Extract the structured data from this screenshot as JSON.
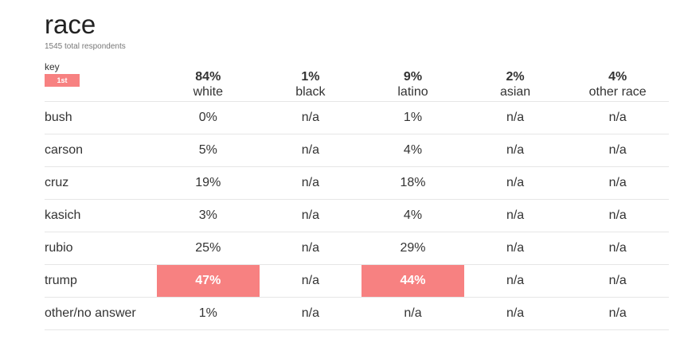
{
  "title": "race",
  "subtitle": "1545 total respondents",
  "key": {
    "label": "key",
    "badge": "1st",
    "badge_color": "#f78181"
  },
  "columns": [
    {
      "pct": "84%",
      "name": "white"
    },
    {
      "pct": "1%",
      "name": "black"
    },
    {
      "pct": "9%",
      "name": "latino"
    },
    {
      "pct": "2%",
      "name": "asian"
    },
    {
      "pct": "4%",
      "name": "other race"
    }
  ],
  "rows": [
    {
      "label": "bush",
      "values": [
        "0%",
        "n/a",
        "1%",
        "n/a",
        "n/a"
      ],
      "winner": [
        false,
        false,
        false,
        false,
        false
      ]
    },
    {
      "label": "carson",
      "values": [
        "5%",
        "n/a",
        "4%",
        "n/a",
        "n/a"
      ],
      "winner": [
        false,
        false,
        false,
        false,
        false
      ]
    },
    {
      "label": "cruz",
      "values": [
        "19%",
        "n/a",
        "18%",
        "n/a",
        "n/a"
      ],
      "winner": [
        false,
        false,
        false,
        false,
        false
      ]
    },
    {
      "label": "kasich",
      "values": [
        "3%",
        "n/a",
        "4%",
        "n/a",
        "n/a"
      ],
      "winner": [
        false,
        false,
        false,
        false,
        false
      ]
    },
    {
      "label": "rubio",
      "values": [
        "25%",
        "n/a",
        "29%",
        "n/a",
        "n/a"
      ],
      "winner": [
        false,
        false,
        false,
        false,
        false
      ]
    },
    {
      "label": "trump",
      "values": [
        "47%",
        "n/a",
        "44%",
        "n/a",
        "n/a"
      ],
      "winner": [
        true,
        false,
        true,
        false,
        false
      ]
    },
    {
      "label": "other/no answer",
      "values": [
        "1%",
        "n/a",
        "n/a",
        "n/a",
        "n/a"
      ],
      "winner": [
        false,
        false,
        false,
        false,
        false
      ]
    }
  ]
}
